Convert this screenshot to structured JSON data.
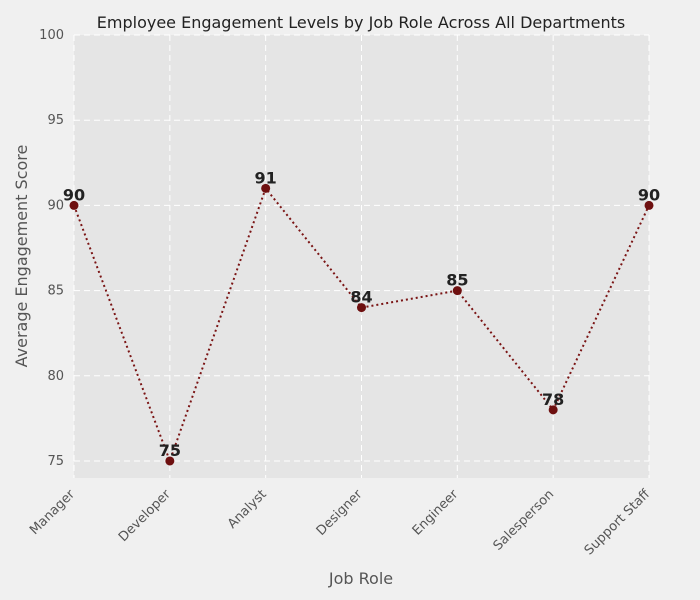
{
  "chart_data": {
    "type": "line",
    "title": "Employee Engagement Levels by Job Role Across All Departments",
    "xlabel": "Job Role",
    "ylabel": "Average Engagement Score",
    "categories": [
      "Manager",
      "Developer",
      "Analyst",
      "Designer",
      "Engineer",
      "Salesperson",
      "Support Staff"
    ],
    "series": [
      {
        "values": [
          90,
          75,
          91,
          84,
          85,
          78,
          90
        ]
      }
    ],
    "ylim": [
      74,
      100
    ],
    "yticks": [
      "75",
      "80",
      "85",
      "90",
      "95",
      "100"
    ],
    "grid": true,
    "line_style": "dotted",
    "colors": {
      "plot_background": "#e5e5e5",
      "figure_background": "#f0f0f0",
      "line": "#7a1414",
      "marker": "#6e1010",
      "grid": "#ffffff"
    }
  }
}
